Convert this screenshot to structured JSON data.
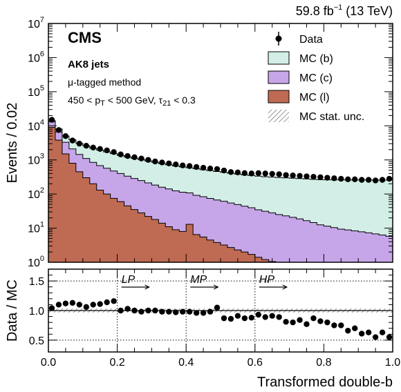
{
  "header": {
    "lumi": "59.8 fb",
    "lumi_exp": "−1",
    "energy": " (13 TeV)",
    "experiment": "CMS",
    "jets": "AK8 jets",
    "method": "μ-tagged method",
    "cut_1": "450 < p",
    "cut_1_sub": "T",
    "cut_2": " < 500 GeV, τ",
    "cut_2_sub": "21",
    "cut_3": " < 0.3"
  },
  "legend": [
    {
      "label": "Data",
      "kind": "marker",
      "color": "#000000"
    },
    {
      "label": "MC (b)",
      "kind": "box",
      "color": "#d2eee6"
    },
    {
      "label": "MC (c)",
      "kind": "box",
      "color": "#c6a6e8"
    },
    {
      "label": "MC (l)",
      "kind": "box",
      "color": "#bf6a52"
    },
    {
      "label": "MC stat. unc.",
      "kind": "hatch",
      "color": "#555555"
    }
  ],
  "regions": [
    {
      "label": "LP",
      "x": 0.2
    },
    {
      "label": "MP",
      "x": 0.4
    },
    {
      "label": "HP",
      "x": 0.6
    }
  ],
  "colors": {
    "mc_b": "#d2eee6",
    "mc_c": "#c6a6e8",
    "mc_l": "#bf6a52",
    "data": "#000000"
  },
  "chart_data": {
    "type": "bar",
    "xlabel": "Transformed double-b",
    "ylabel_top": "Events / 0.02",
    "ylabel_bottom": "Data / MC",
    "x_range": [
      0.0,
      1.0
    ],
    "bin_width": 0.02,
    "top_ylim": [
      1,
      10000000
    ],
    "top_yscale": "log",
    "top_ytick_labels": [
      {
        "base": "10",
        "exp": "0"
      },
      {
        "base": "10",
        "exp": "1"
      },
      {
        "base": "10",
        "exp": "2"
      },
      {
        "base": "10",
        "exp": "3"
      },
      {
        "base": "10",
        "exp": "4"
      },
      {
        "base": "10",
        "exp": "5"
      },
      {
        "base": "10",
        "exp": "6"
      },
      {
        "base": "10",
        "exp": "7"
      }
    ],
    "bottom_ylim": [
      0.3,
      1.7
    ],
    "bottom_yticks": [
      "0.5",
      "1.0",
      "1.5"
    ],
    "xticks": [
      "0.0",
      "0.2",
      "0.4",
      "0.6",
      "0.8",
      "1.0"
    ],
    "bin_centers": [
      0.01,
      0.03,
      0.05,
      0.07,
      0.09,
      0.11,
      0.13,
      0.15,
      0.17,
      0.19,
      0.21,
      0.23,
      0.25,
      0.27,
      0.29,
      0.31,
      0.33,
      0.35,
      0.37,
      0.39,
      0.41,
      0.43,
      0.45,
      0.47,
      0.49,
      0.51,
      0.53,
      0.55,
      0.57,
      0.59,
      0.61,
      0.63,
      0.65,
      0.67,
      0.69,
      0.71,
      0.73,
      0.75,
      0.77,
      0.79,
      0.81,
      0.83,
      0.85,
      0.87,
      0.89,
      0.91,
      0.93,
      0.95,
      0.97,
      0.99
    ],
    "series": [
      {
        "name": "MC (l)",
        "values": [
          9000,
          3800,
          1500,
          800,
          450,
          300,
          200,
          130,
          100,
          75,
          60,
          45,
          35,
          28,
          22,
          18,
          14,
          11,
          9,
          8,
          13,
          6.5,
          5.5,
          4.5,
          3.8,
          3.2,
          2.7,
          2.3,
          2.0,
          1.7,
          1.4,
          1.2,
          1.05,
          1.0,
          0.9,
          0.8,
          0.7,
          0.6,
          0.55,
          0.5,
          0.45,
          0.4,
          0.38,
          0.36,
          0.34,
          0.32,
          0.3,
          0.29,
          0.28,
          0.27
        ]
      },
      {
        "name": "MC (c)",
        "values": [
          4000,
          2800,
          1800,
          1300,
          1000,
          800,
          650,
          550,
          470,
          400,
          340,
          290,
          250,
          220,
          190,
          165,
          145,
          130,
          115,
          105,
          95,
          85,
          78,
          70,
          63,
          58,
          52,
          47,
          42,
          38,
          33,
          30,
          27,
          24,
          22,
          20,
          18,
          16,
          14,
          12,
          11,
          10,
          9,
          8.5,
          8,
          7.5,
          7,
          6.5,
          6,
          5.5
        ]
      },
      {
        "name": "MC (b)",
        "values": [
          1200,
          1500,
          1700,
          1800,
          1600,
          1500,
          1350,
          1250,
          1150,
          1050,
          950,
          880,
          830,
          780,
          720,
          670,
          620,
          580,
          540,
          510,
          480,
          460,
          430,
          410,
          390,
          370,
          350,
          335,
          320,
          310,
          300,
          290,
          285,
          280,
          275,
          270,
          265,
          260,
          255,
          250,
          250,
          250,
          250,
          250,
          250,
          250,
          250,
          250,
          250,
          250
        ]
      },
      {
        "name": "Data",
        "values": [
          15000,
          7500,
          5000,
          3700,
          3000,
          2600,
          2300,
          2100,
          1900,
          1700,
          1450,
          1300,
          1200,
          1100,
          1000,
          900,
          840,
          790,
          740,
          690,
          660,
          620,
          590,
          560,
          540,
          490,
          440,
          430,
          410,
          400,
          410,
          400,
          390,
          380,
          360,
          350,
          340,
          330,
          320,
          310,
          300,
          290,
          280,
          270,
          270,
          260,
          260,
          250,
          260,
          280
        ]
      },
      {
        "name": "Data / MC",
        "values": [
          1.04,
          1.1,
          1.12,
          1.13,
          1.1,
          1.06,
          1.1,
          1.11,
          1.14,
          1.16,
          1.0,
          1.03,
          1.0,
          0.98,
          1.0,
          1.0,
          0.98,
          0.98,
          0.97,
          0.98,
          0.98,
          0.96,
          0.96,
          0.98,
          1.05,
          0.87,
          0.86,
          0.91,
          0.87,
          0.88,
          0.93,
          0.89,
          0.91,
          0.89,
          0.81,
          0.8,
          0.84,
          0.77,
          0.87,
          0.82,
          0.8,
          0.75,
          0.75,
          0.66,
          0.7,
          0.61,
          0.63,
          0.55,
          0.63,
          0.55
        ]
      }
    ]
  }
}
